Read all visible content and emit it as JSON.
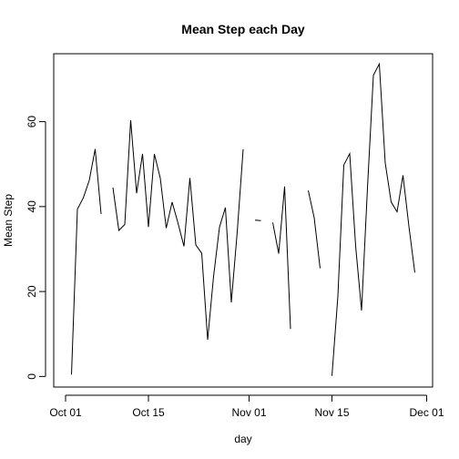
{
  "chart_data": {
    "type": "line",
    "title": "Mean Step each Day",
    "xlabel": "day",
    "ylabel": "Mean Step",
    "xlim": [
      "2012-09-29",
      "2012-12-02"
    ],
    "ylim": [
      -2.5,
      76
    ],
    "x_ticks": [
      {
        "date": "2012-10-01",
        "label": "Oct 01"
      },
      {
        "date": "2012-10-15",
        "label": "Oct 15"
      },
      {
        "date": "2012-11-01",
        "label": "Nov 01"
      },
      {
        "date": "2012-11-15",
        "label": "Nov 15"
      },
      {
        "date": "2012-12-01",
        "label": "Dec 01"
      }
    ],
    "y_ticks": [
      0,
      20,
      40,
      60
    ],
    "grid": false,
    "series": [
      {
        "color": "#000000",
        "x": [
          "2012-10-02",
          "2012-10-03",
          "2012-10-04",
          "2012-10-05",
          "2012-10-06",
          "2012-10-07",
          "2012-10-08",
          "2012-10-09",
          "2012-10-10",
          "2012-10-11",
          "2012-10-12",
          "2012-10-13",
          "2012-10-14",
          "2012-10-15",
          "2012-10-16",
          "2012-10-17",
          "2012-10-18",
          "2012-10-19",
          "2012-10-20",
          "2012-10-21",
          "2012-10-22",
          "2012-10-23",
          "2012-10-24",
          "2012-10-25",
          "2012-10-26",
          "2012-10-27",
          "2012-10-28",
          "2012-10-29",
          "2012-10-30",
          "2012-10-31",
          "2012-11-01",
          "2012-11-02",
          "2012-11-03",
          "2012-11-04",
          "2012-11-05",
          "2012-11-06",
          "2012-11-07",
          "2012-11-08",
          "2012-11-09",
          "2012-11-10",
          "2012-11-11",
          "2012-11-12",
          "2012-11-13",
          "2012-11-14",
          "2012-11-15",
          "2012-11-16",
          "2012-11-17",
          "2012-11-18",
          "2012-11-19",
          "2012-11-20",
          "2012-11-21",
          "2012-11-22",
          "2012-11-23",
          "2012-11-24",
          "2012-11-25",
          "2012-11-26",
          "2012-11-27",
          "2012-11-28",
          "2012-11-29"
        ],
        "y": [
          0.44,
          39.42,
          42.07,
          46.16,
          53.54,
          38.25,
          null,
          44.48,
          34.38,
          35.78,
          60.35,
          43.15,
          52.42,
          35.2,
          52.38,
          46.71,
          34.92,
          41.07,
          36.09,
          30.63,
          46.74,
          30.97,
          29.01,
          8.65,
          23.53,
          35.14,
          39.78,
          17.42,
          34.09,
          53.52,
          null,
          36.81,
          36.7,
          null,
          36.25,
          28.94,
          44.73,
          11.18,
          null,
          null,
          43.78,
          37.38,
          25.47,
          null,
          0.14,
          18.89,
          49.79,
          52.47,
          30.7,
          15.53,
          44.4,
          70.93,
          73.59,
          50.27,
          41.09,
          38.76,
          47.38,
          35.36,
          24.47
        ]
      }
    ]
  }
}
